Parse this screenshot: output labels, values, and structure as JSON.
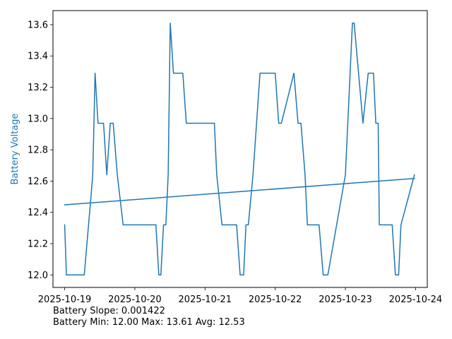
{
  "chart_data": {
    "type": "line",
    "title": "",
    "xlabel": "",
    "ylabel": "Battery Voltage",
    "line_color": "#1f77b4",
    "xlim": [
      "2025-10-18T20:00",
      "2025-10-24T04:00"
    ],
    "ylim": [
      11.92,
      13.69
    ],
    "x_ticks": [
      "2025-10-19",
      "2025-10-20",
      "2025-10-21",
      "2025-10-22",
      "2025-10-23",
      "2025-10-24"
    ],
    "y_ticks": [
      "12.0",
      "12.2",
      "12.4",
      "12.6",
      "12.8",
      "13.0",
      "13.2",
      "13.4",
      "13.6"
    ],
    "grid": false,
    "legend": "none",
    "series": [
      {
        "x": [
          "2025-10-19T00:00",
          "2025-10-19T00:36",
          "2025-10-19T02:00",
          "2025-10-19T06:42",
          "2025-10-19T08:54",
          "2025-10-19T09:36",
          "2025-10-19T10:24",
          "2025-10-19T11:24",
          "2025-10-19T12:36",
          "2025-10-19T13:18",
          "2025-10-19T14:24",
          "2025-10-19T15:36",
          "2025-10-19T16:36",
          "2025-10-19T18:00",
          "2025-10-19T20:00",
          "2025-10-20T00:00",
          "2025-10-20T03:12",
          "2025-10-20T04:48",
          "2025-10-20T06:00",
          "2025-10-20T07:12",
          "2025-10-20T08:12",
          "2025-10-20T08:54",
          "2025-10-20T09:48",
          "2025-10-20T10:36",
          "2025-10-20T11:24",
          "2025-10-20T12:06",
          "2025-10-20T13:12",
          "2025-10-20T16:24",
          "2025-10-20T17:36",
          "2025-10-20T18:24",
          "2025-10-21T00:00",
          "2025-10-21T03:12",
          "2025-10-21T04:00",
          "2025-10-21T05:48",
          "2025-10-21T07:00",
          "2025-10-21T07:48",
          "2025-10-21T08:54",
          "2025-10-21T10:00",
          "2025-10-21T10:48",
          "2025-10-21T12:00",
          "2025-10-21T13:12",
          "2025-10-21T14:00",
          "2025-10-21T14:48",
          "2025-10-21T16:24",
          "2025-10-21T18:48",
          "2025-10-22T00:00",
          "2025-10-22T01:12",
          "2025-10-22T02:06",
          "2025-10-22T06:24",
          "2025-10-22T07:48",
          "2025-10-22T08:48",
          "2025-10-22T10:12",
          "2025-10-22T11:00",
          "2025-10-22T12:00",
          "2025-10-22T13:12",
          "2025-10-22T14:00",
          "2025-10-22T15:00",
          "2025-10-22T16:24",
          "2025-10-22T17:12",
          "2025-10-22T18:00",
          "2025-10-23T00:00",
          "2025-10-23T02:24",
          "2025-10-23T03:00",
          "2025-10-23T06:00",
          "2025-10-23T07:48",
          "2025-10-23T08:24",
          "2025-10-23T09:36",
          "2025-10-23T10:24",
          "2025-10-23T11:12",
          "2025-10-23T11:36",
          "2025-10-23T12:24",
          "2025-10-23T13:12",
          "2025-10-23T14:24",
          "2025-10-23T16:00",
          "2025-10-23T17:06",
          "2025-10-23T18:12",
          "2025-10-23T19:00",
          "2025-10-23T23:36"
        ],
        "y": [
          12.32,
          12.0,
          12.0,
          12.0,
          12.48,
          12.64,
          13.29,
          12.97,
          12.97,
          12.97,
          12.64,
          12.97,
          12.97,
          12.64,
          12.32,
          12.32,
          12.32,
          12.32,
          12.32,
          12.32,
          12.0,
          12.0,
          12.32,
          12.32,
          12.64,
          13.61,
          13.29,
          13.29,
          12.97,
          12.97,
          12.97,
          12.97,
          12.64,
          12.32,
          12.32,
          12.32,
          12.32,
          12.32,
          12.32,
          12.0,
          12.0,
          12.32,
          12.32,
          12.64,
          13.29,
          13.29,
          12.97,
          12.97,
          13.29,
          12.97,
          12.97,
          12.64,
          12.32,
          12.32,
          12.32,
          12.32,
          12.32,
          12.0,
          12.0,
          12.0,
          12.64,
          13.61,
          13.61,
          12.97,
          13.29,
          13.29,
          13.29,
          12.97,
          12.97,
          12.32,
          12.32,
          12.32,
          12.32,
          12.32,
          12.0,
          12.0,
          12.32,
          12.64
        ]
      },
      {
        "x": [
          "2025-10-19T00:00",
          "2025-10-23T23:36"
        ],
        "y": [
          12.448,
          12.617
        ]
      }
    ]
  },
  "notes": {
    "slope": "Battery Slope: 0.001422",
    "stats": "Battery Min: 12.00 Max: 13.61 Avg: 12.53"
  }
}
